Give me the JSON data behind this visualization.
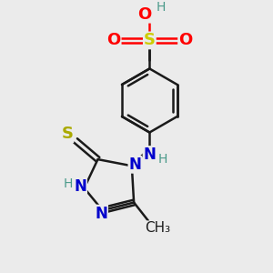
{
  "bg_color": "#ebebeb",
  "bond_color": "#1a1a1a",
  "bond_width": 1.8,
  "S_sulfonic_color": "#cccc00",
  "O_color": "#ff0000",
  "H_color": "#4a9a8a",
  "N_color": "#0000cc",
  "S_thio_color": "#aaaa00",
  "C_color": "#1a1a1a",
  "font_size": 12,
  "small_font_size": 10,
  "figsize": [
    3.0,
    3.0
  ],
  "dpi": 100,
  "xlim": [
    0,
    10
  ],
  "ylim": [
    0,
    10
  ]
}
